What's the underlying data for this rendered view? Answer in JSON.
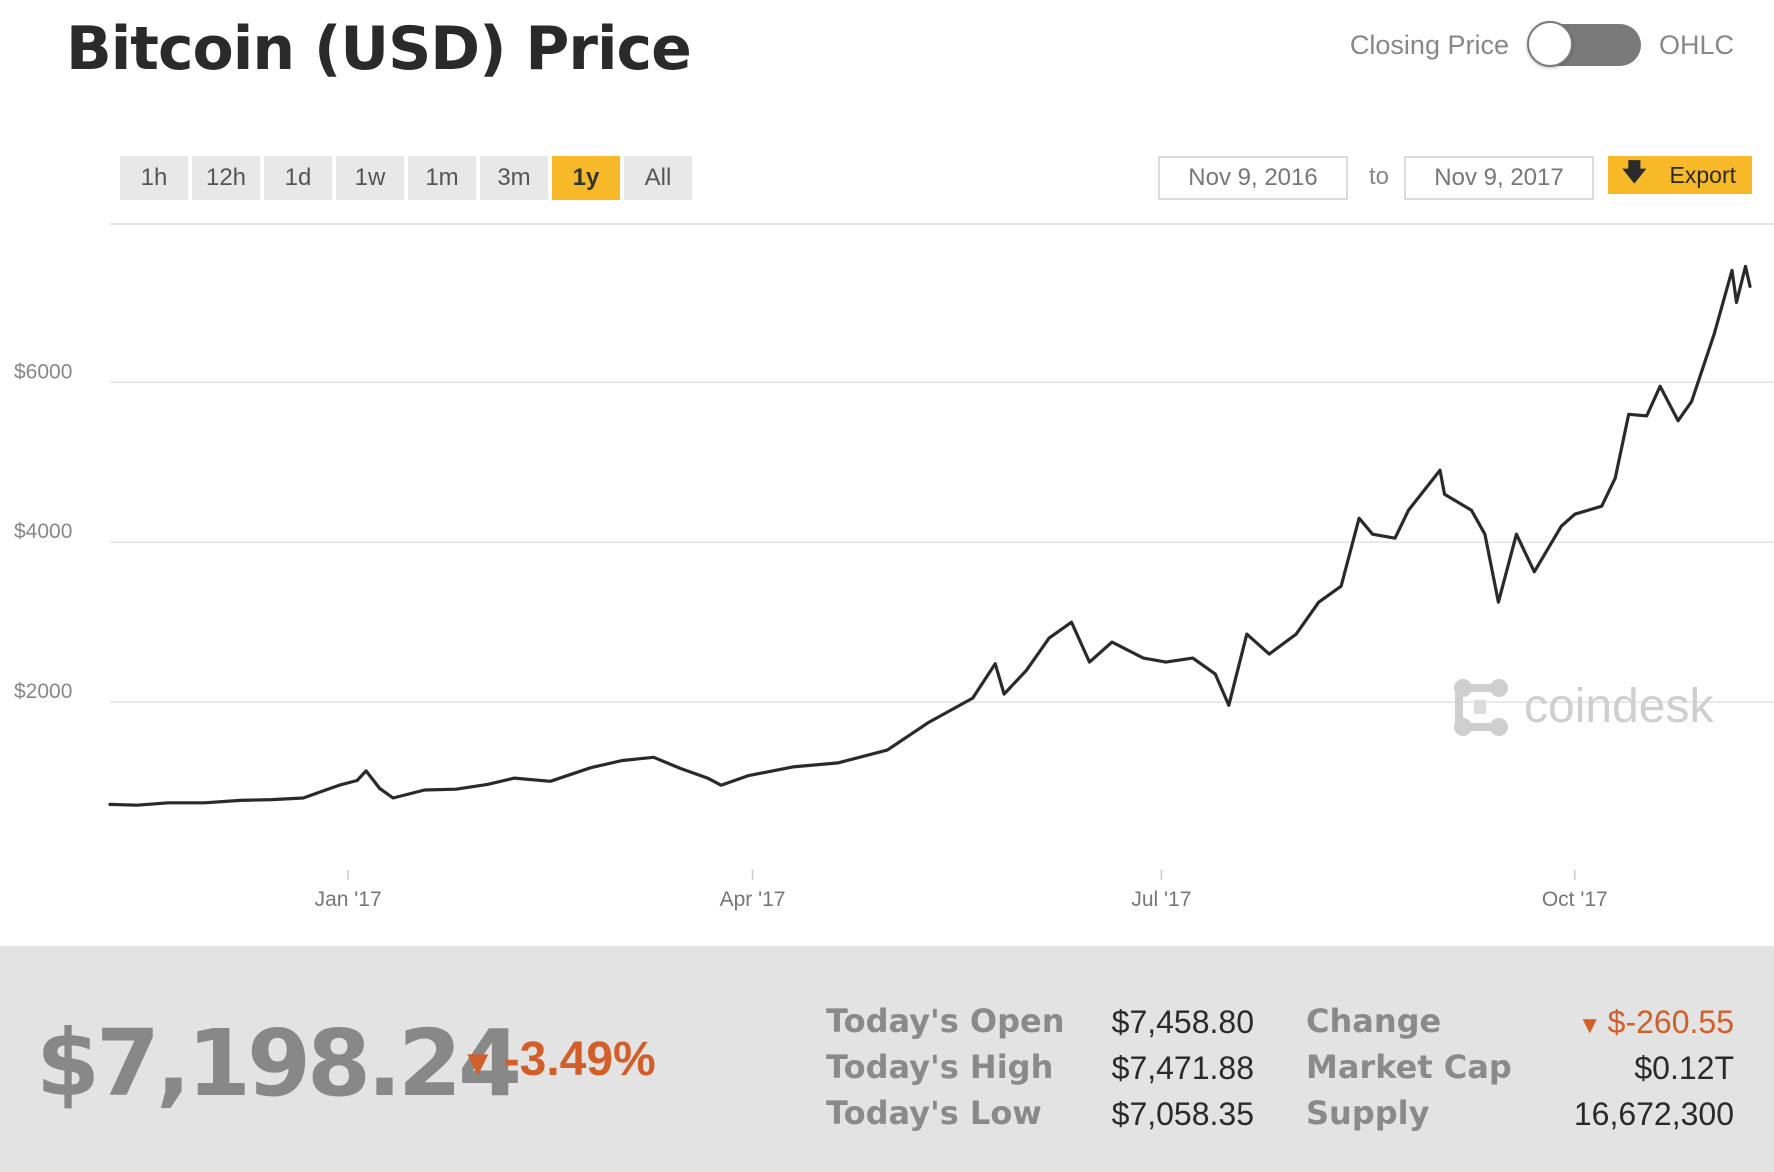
{
  "header": {
    "title": "Bitcoin (USD) Price",
    "toggle_left": "Closing Price",
    "toggle_right": "OHLC"
  },
  "controls": {
    "ranges": [
      "1h",
      "12h",
      "1d",
      "1w",
      "1m",
      "3m",
      "1y",
      "All"
    ],
    "active_range": "1y",
    "date_from": "Nov 9, 2016",
    "date_to_label": "to",
    "date_to": "Nov 9, 2017",
    "export_label": "Export"
  },
  "watermark": "coindesk",
  "colors": {
    "accent": "#f7b928",
    "line": "#2a2a2a",
    "negative": "#d25e2a",
    "panel": "#e3e3e3"
  },
  "summary": {
    "price": "$7,198.24",
    "change_pct": "-3.49%",
    "stats": [
      {
        "label": "Today's Open",
        "value": "$7,458.80"
      },
      {
        "label": "Today's High",
        "value": "$7,471.88"
      },
      {
        "label": "Today's Low",
        "value": "$7,058.35"
      },
      {
        "label": "Change",
        "value": "$-260.55",
        "negative": true
      },
      {
        "label": "Market Cap",
        "value": "$0.12T"
      },
      {
        "label": "Supply",
        "value": "16,672,300"
      }
    ]
  },
  "chart_data": {
    "type": "line",
    "title": "",
    "xlabel": "",
    "ylabel": "",
    "ylim": [
      0,
      7980
    ],
    "xlim": [
      "2016-11-09",
      "2017-11-09"
    ],
    "grid": true,
    "y_ticks": [
      {
        "value": 2000,
        "label": "$2000"
      },
      {
        "value": 4000,
        "label": "$4000"
      },
      {
        "value": 6000,
        "label": "$6000"
      }
    ],
    "x_ticks": [
      {
        "date": "2017-01-01",
        "label": "Jan '17"
      },
      {
        "date": "2017-04-01",
        "label": "Apr '17"
      },
      {
        "date": "2017-07-01",
        "label": "Jul '17"
      },
      {
        "date": "2017-10-01",
        "label": "Oct '17"
      }
    ],
    "series": [
      {
        "name": "",
        "points": [
          [
            "2016-11-09",
            720
          ],
          [
            "2016-11-15",
            710
          ],
          [
            "2016-11-22",
            740
          ],
          [
            "2016-11-30",
            740
          ],
          [
            "2016-12-08",
            770
          ],
          [
            "2016-12-15",
            780
          ],
          [
            "2016-12-22",
            800
          ],
          [
            "2016-12-27",
            900
          ],
          [
            "2016-12-30",
            960
          ],
          [
            "2017-01-03",
            1020
          ],
          [
            "2017-01-05",
            1140
          ],
          [
            "2017-01-08",
            920
          ],
          [
            "2017-01-11",
            800
          ],
          [
            "2017-01-18",
            900
          ],
          [
            "2017-01-25",
            910
          ],
          [
            "2017-02-01",
            970
          ],
          [
            "2017-02-07",
            1050
          ],
          [
            "2017-02-15",
            1010
          ],
          [
            "2017-02-24",
            1180
          ],
          [
            "2017-03-03",
            1270
          ],
          [
            "2017-03-10",
            1310
          ],
          [
            "2017-03-16",
            1170
          ],
          [
            "2017-03-22",
            1050
          ],
          [
            "2017-03-25",
            960
          ],
          [
            "2017-03-31",
            1080
          ],
          [
            "2017-04-10",
            1190
          ],
          [
            "2017-04-20",
            1240
          ],
          [
            "2017-05-01",
            1400
          ],
          [
            "2017-05-10",
            1740
          ],
          [
            "2017-05-20",
            2050
          ],
          [
            "2017-05-25",
            2480
          ],
          [
            "2017-05-27",
            2100
          ],
          [
            "2017-06-01",
            2400
          ],
          [
            "2017-06-06",
            2800
          ],
          [
            "2017-06-11",
            3000
          ],
          [
            "2017-06-15",
            2500
          ],
          [
            "2017-06-20",
            2750
          ],
          [
            "2017-06-27",
            2550
          ],
          [
            "2017-07-02",
            2500
          ],
          [
            "2017-07-08",
            2550
          ],
          [
            "2017-07-13",
            2350
          ],
          [
            "2017-07-16",
            1960
          ],
          [
            "2017-07-20",
            2850
          ],
          [
            "2017-07-25",
            2600
          ],
          [
            "2017-07-31",
            2850
          ],
          [
            "2017-08-05",
            3250
          ],
          [
            "2017-08-10",
            3450
          ],
          [
            "2017-08-14",
            4300
          ],
          [
            "2017-08-17",
            4100
          ],
          [
            "2017-08-22",
            4050
          ],
          [
            "2017-08-25",
            4400
          ],
          [
            "2017-09-01",
            4900
          ],
          [
            "2017-09-02",
            4600
          ],
          [
            "2017-09-08",
            4400
          ],
          [
            "2017-09-11",
            4100
          ],
          [
            "2017-09-14",
            3250
          ],
          [
            "2017-09-18",
            4100
          ],
          [
            "2017-09-22",
            3630
          ],
          [
            "2017-09-28",
            4200
          ],
          [
            "2017-10-01",
            4350
          ],
          [
            "2017-10-07",
            4450
          ],
          [
            "2017-10-10",
            4800
          ],
          [
            "2017-10-13",
            5600
          ],
          [
            "2017-10-17",
            5580
          ],
          [
            "2017-10-20",
            5950
          ],
          [
            "2017-10-24",
            5520
          ],
          [
            "2017-10-27",
            5760
          ],
          [
            "2017-11-01",
            6600
          ],
          [
            "2017-11-05",
            7400
          ],
          [
            "2017-11-06",
            7000
          ],
          [
            "2017-11-08",
            7450
          ],
          [
            "2017-11-09",
            7200
          ]
        ]
      }
    ]
  }
}
